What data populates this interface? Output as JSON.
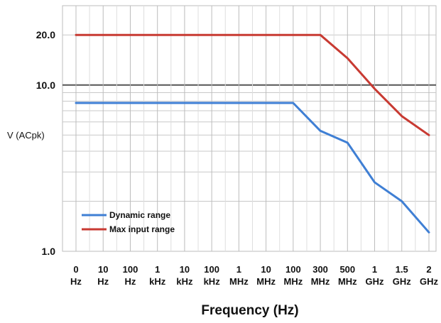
{
  "chart_data": {
    "type": "line",
    "title": "",
    "xlabel": "Frequency (Hz)",
    "ylabel": "V (ACpk)",
    "x_scale": "categorical",
    "y_scale": "log",
    "ylim": [
      1.0,
      30.0
    ],
    "grid": true,
    "legend_position": "bottom-left",
    "categories": [
      [
        "0",
        "Hz"
      ],
      [
        "10",
        "Hz"
      ],
      [
        "100",
        "Hz"
      ],
      [
        "1",
        "kHz"
      ],
      [
        "10",
        "kHz"
      ],
      [
        "100",
        "kHz"
      ],
      [
        "1",
        "MHz"
      ],
      [
        "10",
        "MHz"
      ],
      [
        "100",
        "MHz"
      ],
      [
        "300",
        "MHz"
      ],
      [
        "500",
        "MHz"
      ],
      [
        "1",
        "GHz"
      ],
      [
        "1.5",
        "GHz"
      ],
      [
        "2",
        "GHz"
      ]
    ],
    "y_ticks": [
      "1.0",
      "10.0",
      "20.0"
    ],
    "series": [
      {
        "name": "Dynamic range",
        "color": "#3f7fd4",
        "values": [
          7.8,
          7.8,
          7.8,
          7.8,
          7.8,
          7.8,
          7.8,
          7.8,
          7.8,
          5.3,
          4.5,
          2.6,
          2.0,
          1.3
        ]
      },
      {
        "name": "Max input range",
        "color": "#c83a32",
        "values": [
          20.0,
          20.0,
          20.0,
          20.0,
          20.0,
          20.0,
          20.0,
          20.0,
          20.0,
          20.0,
          14.5,
          9.5,
          6.5,
          5.0
        ]
      }
    ]
  }
}
